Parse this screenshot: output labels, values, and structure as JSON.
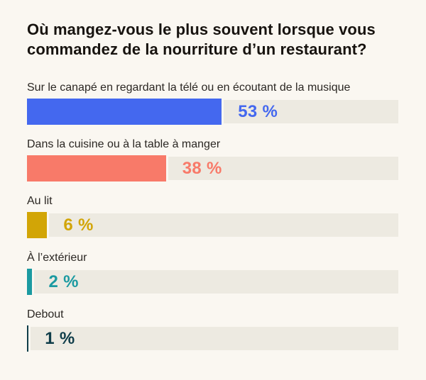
{
  "title": "Où mangez-vous le plus souvent lorsque vous commandez de la nourriture d’un restaurant?",
  "chart_data": {
    "type": "bar",
    "orientation": "horizontal",
    "title": "Où mangez-vous le plus souvent lorsque vous commandez de la nourriture d’un restaurant?",
    "categories": [
      "Sur le canapé en regardant la télé ou en écoutant de la musique",
      "Dans la cuisine ou à la table à manger",
      "Au lit",
      "À l’extérieur",
      "Debout"
    ],
    "values": [
      53,
      38,
      6,
      2,
      1
    ],
    "value_labels": [
      "53 %",
      "38 %",
      "6 %",
      "2 %",
      "1 %"
    ],
    "bar_colors": [
      "#4468ef",
      "#f87a69",
      "#d2a506",
      "#1b9aa1",
      "#0f3d49"
    ],
    "track_color": "#edeae1",
    "background_color": "#faf7f1",
    "xlim": [
      0,
      100
    ],
    "grid": false,
    "legend": false,
    "xlabel": "",
    "ylabel": ""
  }
}
